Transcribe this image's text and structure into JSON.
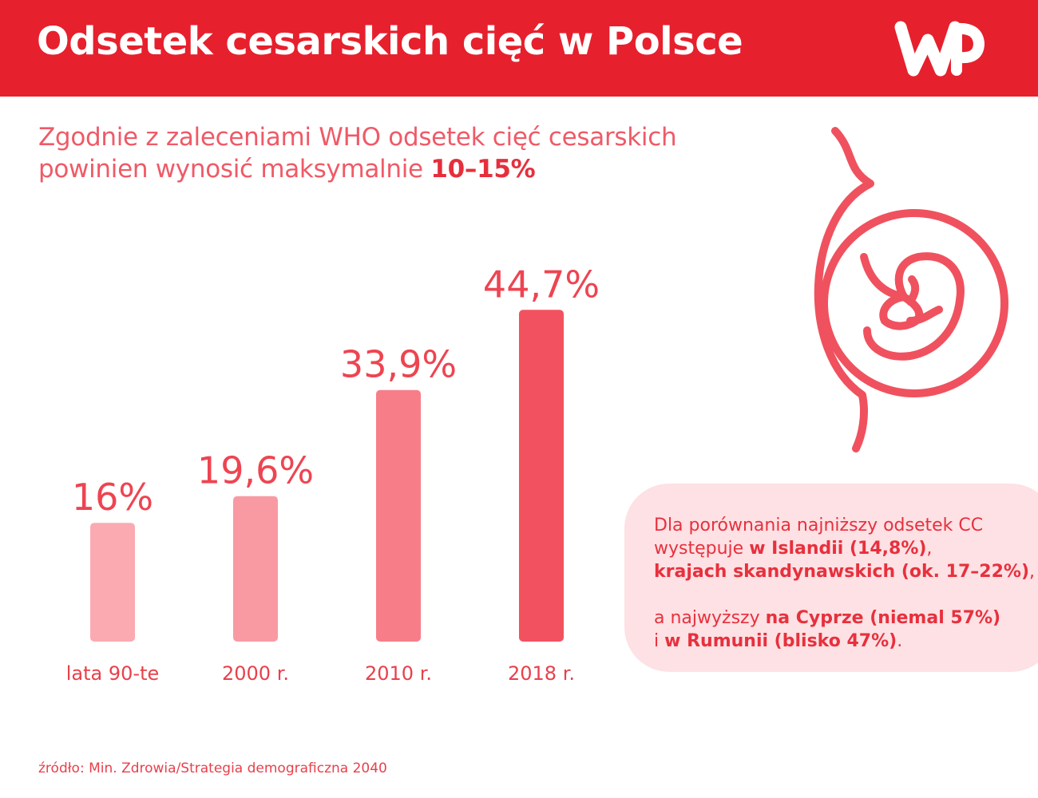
{
  "header": {
    "title": "Odsetek cesarskich cięć w Polsce",
    "logo_text": "WP",
    "background_color": "#e6202d"
  },
  "subtitle": {
    "line1": "Zgodnie z zaleceniami WHO odsetek cięć cesarskich",
    "line2_prefix": "powinien wynosić maksymalnie ",
    "line2_bold": "10–15%"
  },
  "chart_data": {
    "type": "bar",
    "categories": [
      "lata 90-te",
      "2000 r.",
      "2010 r.",
      "2018 r."
    ],
    "values": [
      16,
      19.6,
      33.9,
      44.7
    ],
    "value_labels": [
      "16%",
      "19,6%",
      "33,9%",
      "44,7%"
    ],
    "bar_colors": [
      "#fbaab1",
      "#f99aa3",
      "#f77e89",
      "#f2525f"
    ],
    "label_color": "#ee4451",
    "title": "",
    "xlabel": "",
    "ylabel": "",
    "ylim": [
      0,
      50
    ],
    "grid": false,
    "legend": "none"
  },
  "icon": {
    "name": "pregnancy-fetus-icon",
    "color": "#f0515e"
  },
  "comparison": {
    "l1": "Dla porównania najniższy odsetek CC",
    "l2_a": "występuje ",
    "l2_b": "w Islandii (14,8%)",
    "l2_c": ",",
    "l3_a": "krajach skandynawskich (ok. 17–22%)",
    "l3_b": ",",
    "l4_a": "a najwyższy ",
    "l4_b": "na Cyprze (niemal 57%)",
    "l5_a": "i ",
    "l5_b": "w Rumunii (blisko 47%)",
    "l5_c": ".",
    "background_color": "#fde1e4"
  },
  "source": "źródło: Min. Zdrowia/Strategia demograficzna 2040"
}
